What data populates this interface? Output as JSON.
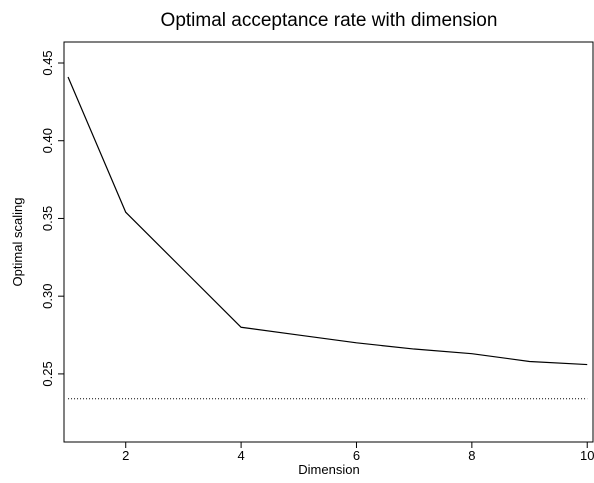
{
  "chart_data": {
    "type": "line",
    "title": "Optimal acceptance rate with dimension",
    "x_label": "Dimension",
    "y_label": "Optimal scaling",
    "x": [
      1,
      2,
      3,
      4,
      5,
      6,
      7,
      8,
      9,
      10
    ],
    "series": [
      {
        "color": "#000000",
        "values": [
          0.441,
          0.354,
          0.317,
          0.28,
          0.275,
          0.27,
          0.266,
          0.263,
          0.258,
          0.256
        ]
      }
    ],
    "hline": {
      "value": 0.234,
      "color": "#000000",
      "style": "dotted"
    },
    "xlim": [
      0.93,
      10.1
    ],
    "ylim": [
      0.2062,
      0.4635
    ],
    "xticks": [
      2,
      4,
      6,
      8,
      10
    ],
    "yticks": [
      0.25,
      {
        "value": 0.3,
        "label": "0.30"
      },
      0.35,
      {
        "value": 0.4,
        "label": "0.40"
      },
      0.45
    ]
  }
}
